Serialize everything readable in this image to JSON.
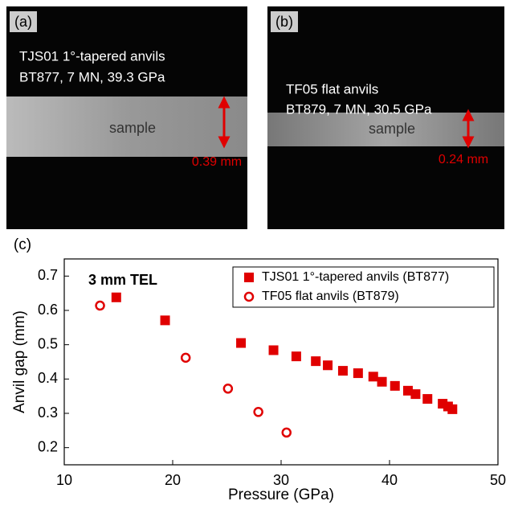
{
  "panels": [
    {
      "label": "(a)",
      "lines": [
        "TJS01 1°-tapered anvils",
        "BT877, 7 MN, 39.3 GPa"
      ],
      "sample": "sample",
      "gap": "0.39 mm"
    },
    {
      "label": "(b)",
      "lines": [
        "TF05 flat anvils",
        "BT879, 7 MN, 30.5 GPa"
      ],
      "sample": "sample",
      "gap": "0.24 mm"
    }
  ],
  "chart_data": {
    "type": "scatter",
    "panel_label": "(c)",
    "annotation": "3 mm TEL",
    "xlabel": "Pressure (GPa)",
    "ylabel": "Anvil gap (mm)",
    "xlim": [
      10,
      50
    ],
    "xticks": [
      10,
      20,
      30,
      40,
      50
    ],
    "ylim": [
      0.15,
      0.75
    ],
    "yticks": [
      0.2,
      0.3,
      0.4,
      0.5,
      0.6,
      0.7
    ],
    "legend": "upper right",
    "series": [
      {
        "name": "TJS01 1°-tapered anvils (BT877)",
        "color": "#e00000",
        "marker": "filled-square",
        "x": [
          14.8,
          19.3,
          26.3,
          29.3,
          31.4,
          33.2,
          34.3,
          35.7,
          37.1,
          38.5,
          39.3,
          40.5,
          41.7,
          42.4,
          43.5,
          44.9,
          45.4,
          45.8
        ],
        "values": [
          0.638,
          0.571,
          0.505,
          0.484,
          0.466,
          0.452,
          0.44,
          0.424,
          0.417,
          0.407,
          0.392,
          0.38,
          0.366,
          0.356,
          0.342,
          0.328,
          0.32,
          0.312
        ]
      },
      {
        "name": "TF05 flat anvils (BT879)",
        "color": "#e00000",
        "marker": "open-circle",
        "x": [
          13.3,
          21.2,
          25.1,
          27.9,
          30.5
        ],
        "values": [
          0.614,
          0.462,
          0.372,
          0.304,
          0.244
        ]
      }
    ]
  }
}
